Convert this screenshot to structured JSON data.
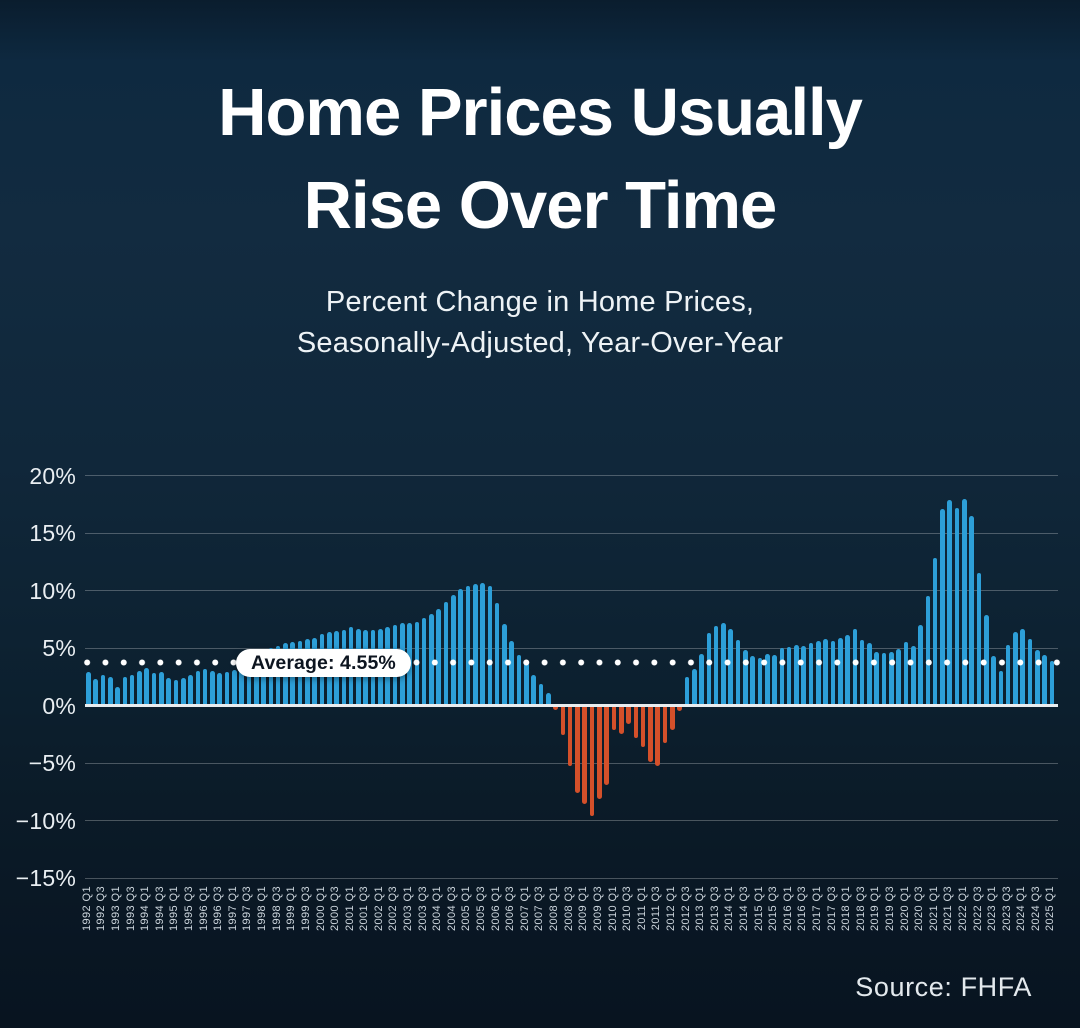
{
  "title": {
    "line1": "Home Prices Usually",
    "line2": "Rise Over Time"
  },
  "subtitle": {
    "line1": "Percent Change in Home Prices,",
    "line2": "Seasonally-Adjusted, Year-Over-Year"
  },
  "source": "Source: FHFA",
  "average": {
    "label": "Average: 4.55%",
    "value": 4.55
  },
  "chart_data": {
    "type": "bar",
    "title": "Home Prices Usually Rise Over Time",
    "subtitle": "Percent Change in Home Prices, Seasonally-Adjusted, Year-Over-Year",
    "ylim": [
      -15,
      20
    ],
    "grid": true,
    "tick_every": 2,
    "average_line": {
      "label": "Average: 4.55%",
      "value": 4.55
    },
    "colors": {
      "positive": "#2d9fd8",
      "negative": "#d4502a",
      "average_line": "#ffffff",
      "zero_axis": "#e9edf0"
    },
    "y_ticks": [
      {
        "label": "20%",
        "value": 20
      },
      {
        "label": "15%",
        "value": 15
      },
      {
        "label": "10%",
        "value": 10
      },
      {
        "label": "5%",
        "value": 5
      },
      {
        "label": "0%",
        "value": 0
      },
      {
        "label": "−5%",
        "value": -5
      },
      {
        "label": "−10%",
        "value": -10
      },
      {
        "label": "−15%",
        "value": -15
      }
    ],
    "categories": [
      "1992 Q1",
      "1992 Q2",
      "1992 Q3",
      "1992 Q4",
      "1993 Q1",
      "1993 Q2",
      "1993 Q3",
      "1993 Q4",
      "1994 Q1",
      "1994 Q2",
      "1994 Q3",
      "1994 Q4",
      "1995 Q1",
      "1995 Q2",
      "1995 Q3",
      "1995 Q4",
      "1996 Q1",
      "1996 Q2",
      "1996 Q3",
      "1996 Q4",
      "1997 Q1",
      "1997 Q2",
      "1997 Q3",
      "1997 Q4",
      "1998 Q1",
      "1998 Q2",
      "1998 Q3",
      "1998 Q4",
      "1999 Q1",
      "1999 Q2",
      "1999 Q3",
      "1999 Q4",
      "2000 Q1",
      "2000 Q2",
      "2000 Q3",
      "2000 Q4",
      "2001 Q1",
      "2001 Q2",
      "2001 Q3",
      "2001 Q4",
      "2002 Q1",
      "2002 Q2",
      "2002 Q3",
      "2002 Q4",
      "2003 Q1",
      "2003 Q2",
      "2003 Q3",
      "2003 Q4",
      "2004 Q1",
      "2004 Q2",
      "2004 Q3",
      "2004 Q4",
      "2005 Q1",
      "2005 Q2",
      "2005 Q3",
      "2005 Q4",
      "2006 Q1",
      "2006 Q2",
      "2006 Q3",
      "2006 Q4",
      "2007 Q1",
      "2007 Q2",
      "2007 Q3",
      "2007 Q4",
      "2008 Q1",
      "2008 Q2",
      "2008 Q3",
      "2008 Q4",
      "2009 Q1",
      "2009 Q2",
      "2009 Q3",
      "2009 Q4",
      "2010 Q1",
      "2010 Q2",
      "2010 Q3",
      "2010 Q4",
      "2011 Q1",
      "2011 Q2",
      "2011 Q3",
      "2011 Q4",
      "2012 Q1",
      "2012 Q2",
      "2012 Q3",
      "2012 Q4",
      "2013 Q1",
      "2013 Q2",
      "2013 Q3",
      "2013 Q4",
      "2014 Q1",
      "2014 Q2",
      "2014 Q3",
      "2014 Q4",
      "2015 Q1",
      "2015 Q2",
      "2015 Q3",
      "2015 Q4",
      "2016 Q1",
      "2016 Q2",
      "2016 Q3",
      "2016 Q4",
      "2017 Q1",
      "2017 Q2",
      "2017 Q3",
      "2017 Q4",
      "2018 Q1",
      "2018 Q2",
      "2018 Q3",
      "2018 Q4",
      "2019 Q1",
      "2019 Q2",
      "2019 Q3",
      "2019 Q4",
      "2020 Q1",
      "2020 Q2",
      "2020 Q3",
      "2020 Q4",
      "2021 Q1",
      "2021 Q2",
      "2021 Q3",
      "2021 Q4",
      "2022 Q1",
      "2022 Q2",
      "2022 Q3",
      "2022 Q4",
      "2023 Q1",
      "2023 Q2",
      "2023 Q3",
      "2023 Q4",
      "2024 Q1",
      "2024 Q2",
      "2024 Q3",
      "2024 Q4",
      "2025 Q1"
    ],
    "values": [
      2.9,
      2.3,
      2.7,
      2.5,
      1.6,
      2.5,
      2.7,
      3.0,
      3.3,
      2.8,
      2.9,
      2.4,
      2.2,
      2.4,
      2.7,
      3.0,
      3.2,
      3.0,
      2.8,
      2.9,
      3.1,
      3.4,
      3.8,
      4.2,
      4.6,
      5.0,
      5.2,
      5.4,
      5.5,
      5.6,
      5.8,
      5.9,
      6.2,
      6.4,
      6.5,
      6.6,
      6.8,
      6.7,
      6.6,
      6.6,
      6.7,
      6.8,
      7.0,
      7.2,
      7.2,
      7.3,
      7.6,
      8.0,
      8.4,
      9.0,
      9.6,
      10.1,
      10.4,
      10.6,
      10.7,
      10.4,
      8.9,
      7.1,
      5.6,
      4.4,
      3.7,
      2.7,
      1.9,
      1.1,
      -0.4,
      -2.6,
      -5.3,
      -7.6,
      -8.6,
      -9.6,
      -8.1,
      -6.9,
      -2.1,
      -2.5,
      -1.6,
      -2.8,
      -3.6,
      -4.9,
      -5.3,
      -3.3,
      -2.1,
      -0.5,
      2.5,
      3.2,
      4.5,
      6.3,
      6.9,
      7.2,
      6.7,
      5.7,
      4.8,
      4.3,
      4.1,
      4.5,
      4.4,
      5.0,
      5.1,
      5.3,
      5.2,
      5.4,
      5.6,
      5.8,
      5.6,
      5.9,
      6.1,
      6.7,
      5.7,
      5.4,
      4.7,
      4.6,
      4.7,
      4.9,
      5.5,
      5.2,
      7.0,
      9.5,
      12.8,
      17.1,
      17.9,
      17.2,
      18.0,
      16.5,
      11.5,
      7.9,
      4.3,
      3.0,
      5.3,
      6.4,
      6.7,
      5.8,
      4.8,
      4.4,
      3.9
    ]
  }
}
